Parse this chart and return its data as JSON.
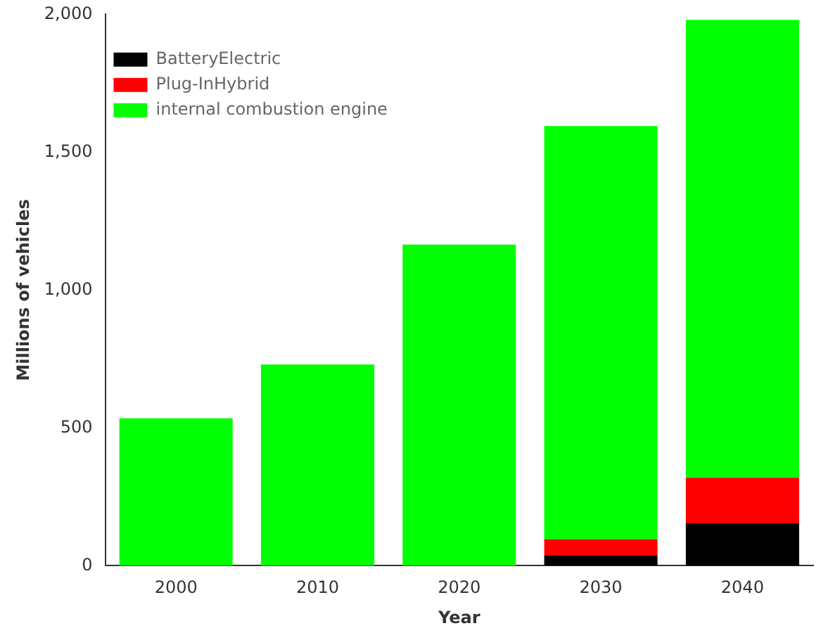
{
  "chart_data": {
    "type": "bar",
    "stacked": true,
    "xlabel": "Year",
    "ylabel": "Millions of vehicles",
    "categories": [
      "2000",
      "2010",
      "2020",
      "2030",
      "2040"
    ],
    "series": [
      {
        "name": "BatteryElectric",
        "color": "#000000",
        "values": [
          0,
          0,
          0,
          37,
          154
        ]
      },
      {
        "name": "Plug-InHybrid",
        "color": "#ff0000",
        "values": [
          0,
          0,
          0,
          59,
          165
        ]
      },
      {
        "name": "internal combustion engine",
        "color": "#00ff00",
        "values": [
          535,
          730,
          1165,
          1499,
          1661
        ]
      }
    ],
    "ylim": [
      0,
      2000
    ],
    "yticks": [
      0,
      {
        "value": 500,
        "label": "500"
      },
      {
        "value": 1000,
        "label": "1,000"
      },
      {
        "value": 1500,
        "label": "1,500"
      },
      {
        "value": 2000,
        "label": "2,000"
      }
    ],
    "grid": false,
    "legend": "top left"
  }
}
